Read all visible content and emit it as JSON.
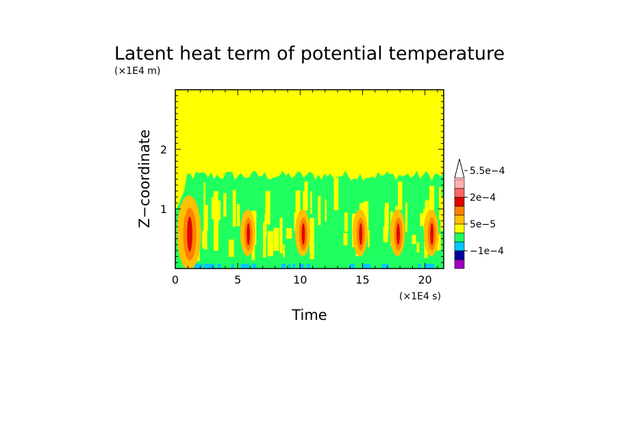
{
  "chart_data": {
    "type": "heatmap",
    "title": "Latent heat term of potential temperature",
    "xlabel": "Time",
    "ylabel": "Z−coordinate",
    "x_unit": "(×1E4 s)",
    "y_unit": "(×1E4 m)",
    "xlim": [
      0,
      21.5
    ],
    "ylim": [
      0,
      3
    ],
    "x_ticks": [
      0,
      5,
      10,
      15,
      20
    ],
    "x_tick_labels": [
      "0",
      "5",
      "10",
      "15",
      "20"
    ],
    "y_ticks": [
      1,
      2
    ],
    "y_tick_labels": [
      "1",
      "2"
    ],
    "colorbar": {
      "extend": "max",
      "levels": [
        -0.00015,
        -0.0001,
        -5e-05,
        0,
        5e-05,
        0.0001,
        0.00015,
        0.0002,
        0.0003,
        0.0004,
        0.00055
      ],
      "colors": [
        "#a000c0",
        "#0000a0",
        "#00c8ff",
        "#20ff60",
        "#ffff00",
        "#ffc000",
        "#ff8000",
        "#e00000",
        "#ff6666",
        "#ffb0b0",
        "#ffffff"
      ],
      "tick_labels": [
        {
          "value": "-1e-4",
          "text": "−1e−4"
        },
        {
          "value": "5e-5",
          "text": "5e−5"
        },
        {
          "value": "2e-4",
          "text": "2e−4"
        },
        {
          "value": "5.5e-4",
          "text": "5.5e−4"
        }
      ]
    },
    "field_features": {
      "background_above_z": 1.55,
      "background_category": "0 to 5e-5",
      "low_band_category": "-5e-5 to 0",
      "intense_convective_events_time": [
        1.1,
        5.8,
        10.2,
        14.8,
        17.8,
        20.5
      ]
    }
  },
  "colors": {
    "yellow": "#ffff00",
    "green": "#20ff60",
    "cyan": "#00c8ff",
    "orange": "#ffc000",
    "dark_orange": "#ff8000",
    "red": "#e00000"
  }
}
